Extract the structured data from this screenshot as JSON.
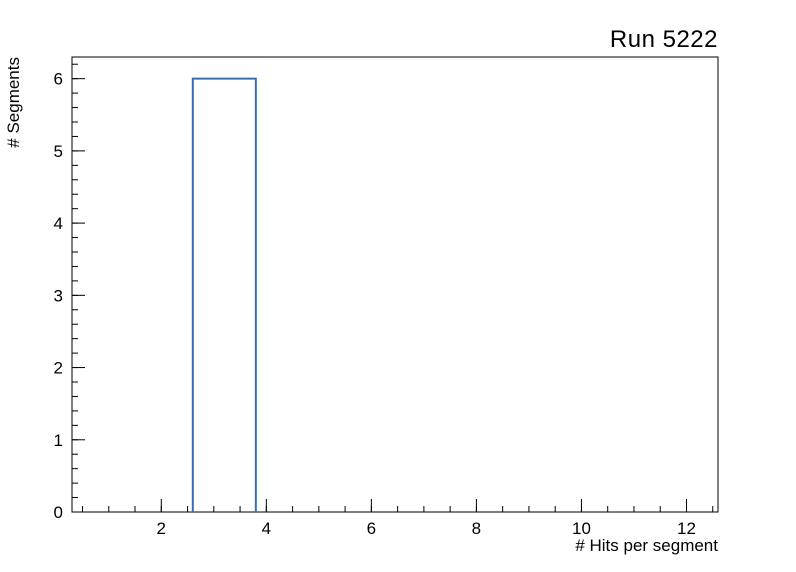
{
  "chart_data": {
    "type": "bar",
    "style": "step-outline-histogram",
    "title": "Run 5222",
    "xlabel": "# Hits per segment",
    "ylabel": "# Segments",
    "xlim": [
      0.3,
      12.6
    ],
    "ylim": [
      0,
      6.3
    ],
    "x_major_ticks": [
      2,
      4,
      6,
      8,
      10,
      12
    ],
    "x_minor_step": 0.5,
    "y_major_ticks": [
      0,
      1,
      2,
      3,
      4,
      5,
      6
    ],
    "y_minor_step": 0.2,
    "bars": [
      {
        "x_start": 2.6,
        "x_end": 3.8,
        "height": 6
      }
    ],
    "line_color": "#3c6cb0",
    "frame_color": "#000000",
    "background": "#ffffff",
    "grid": false,
    "legend": "none"
  }
}
